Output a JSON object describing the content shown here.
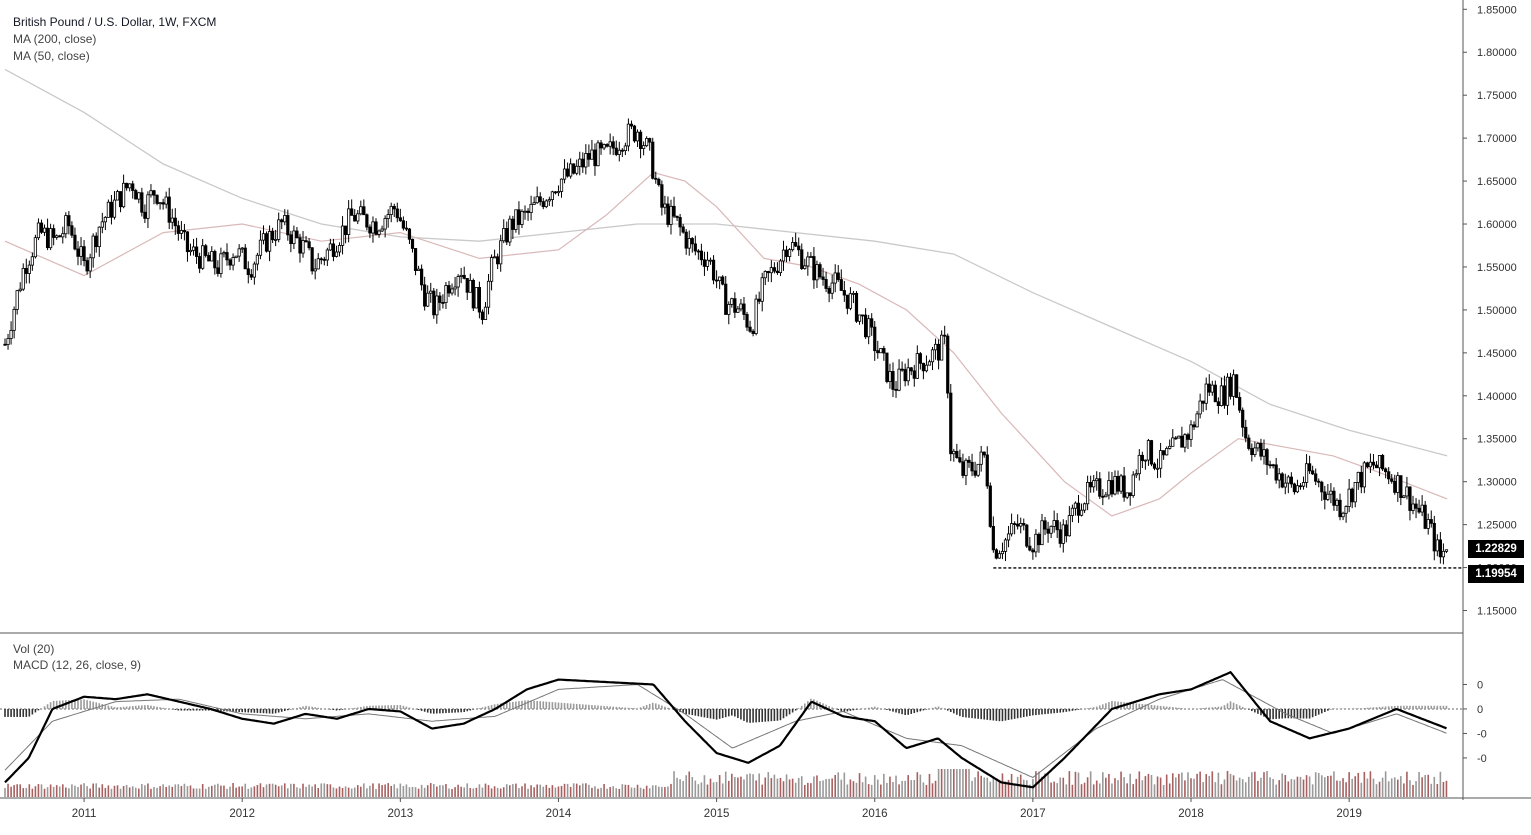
{
  "legend": {
    "symbol": "British Pound / U.S. Dollar, 1W, FXCM",
    "ma200": "MA (200, close)",
    "ma50": "MA (50, close)",
    "vol": "Vol (20)",
    "macd": "MACD (12, 26, close, 9)"
  },
  "price_badges": {
    "last": "1.22829",
    "low": "1.19954"
  },
  "colors": {
    "candle": "#000000",
    "ma200": "#c9c9c9",
    "ma50": "#d9b8b8",
    "volume_up": "#8b2a2a",
    "volume_down": "#777777",
    "macd_line": "#000000",
    "signal_line": "#777777",
    "histogram": "#9a9a9a"
  },
  "chart_data": [
    {
      "type": "line",
      "title": "British Pound / U.S. Dollar, 1W, FXCM",
      "x_axis": {
        "ticks": [
          "2011",
          "2012",
          "2013",
          "2014",
          "2015",
          "2016",
          "2017",
          "2018",
          "2019"
        ],
        "range": [
          2010.5,
          2019.72
        ]
      },
      "y_axis": {
        "ticks": [
          "1.85000",
          "1.80000",
          "1.75000",
          "1.70000",
          "1.65000",
          "1.60000",
          "1.55000",
          "1.50000",
          "1.45000",
          "1.40000",
          "1.35000",
          "1.30000",
          "1.25000",
          "1.20000",
          "1.15000"
        ],
        "range": [
          1.125,
          1.855
        ],
        "side": "right"
      },
      "series": [
        {
          "name": "British Pound / U.S. Dollar",
          "style": "candlestick",
          "points": [
            [
              2010.5,
              1.46
            ],
            [
              2010.62,
              1.55
            ],
            [
              2010.72,
              1.59
            ],
            [
              2010.82,
              1.58
            ],
            [
              2010.9,
              1.6
            ],
            [
              2011.0,
              1.55
            ],
            [
              2011.1,
              1.6
            ],
            [
              2011.18,
              1.62
            ],
            [
              2011.3,
              1.65
            ],
            [
              2011.38,
              1.62
            ],
            [
              2011.45,
              1.64
            ],
            [
              2011.55,
              1.61
            ],
            [
              2011.65,
              1.57
            ],
            [
              2011.75,
              1.56
            ],
            [
              2011.85,
              1.55
            ],
            [
              2011.95,
              1.57
            ],
            [
              2012.05,
              1.55
            ],
            [
              2012.15,
              1.58
            ],
            [
              2012.25,
              1.6
            ],
            [
              2012.4,
              1.57
            ],
            [
              2012.45,
              1.55
            ],
            [
              2012.55,
              1.57
            ],
            [
              2012.7,
              1.61
            ],
            [
              2012.85,
              1.6
            ],
            [
              2012.97,
              1.62
            ],
            [
              2013.05,
              1.58
            ],
            [
              2013.15,
              1.52
            ],
            [
              2013.22,
              1.5
            ],
            [
              2013.3,
              1.53
            ],
            [
              2013.38,
              1.55
            ],
            [
              2013.45,
              1.52
            ],
            [
              2013.52,
              1.5
            ],
            [
              2013.58,
              1.55
            ],
            [
              2013.7,
              1.6
            ],
            [
              2013.8,
              1.61
            ],
            [
              2013.9,
              1.63
            ],
            [
              2014.0,
              1.65
            ],
            [
              2014.1,
              1.66
            ],
            [
              2014.2,
              1.68
            ],
            [
              2014.3,
              1.68
            ],
            [
              2014.4,
              1.7
            ],
            [
              2014.5,
              1.71
            ],
            [
              2014.58,
              1.68
            ],
            [
              2014.65,
              1.62
            ],
            [
              2014.75,
              1.6
            ],
            [
              2014.85,
              1.57
            ],
            [
              2014.95,
              1.56
            ],
            [
              2015.05,
              1.51
            ],
            [
              2015.15,
              1.5
            ],
            [
              2015.22,
              1.48
            ],
            [
              2015.3,
              1.53
            ],
            [
              2015.4,
              1.56
            ],
            [
              2015.45,
              1.58
            ],
            [
              2015.55,
              1.56
            ],
            [
              2015.65,
              1.54
            ],
            [
              2015.75,
              1.53
            ],
            [
              2015.85,
              1.51
            ],
            [
              2015.95,
              1.48
            ],
            [
              2016.05,
              1.44
            ],
            [
              2016.12,
              1.41
            ],
            [
              2016.2,
              1.43
            ],
            [
              2016.3,
              1.44
            ],
            [
              2016.38,
              1.45
            ],
            [
              2016.45,
              1.46
            ],
            [
              2016.48,
              1.34
            ],
            [
              2016.55,
              1.31
            ],
            [
              2016.65,
              1.32
            ],
            [
              2016.7,
              1.33
            ],
            [
              2016.75,
              1.22
            ],
            [
              2016.82,
              1.23
            ],
            [
              2016.9,
              1.25
            ],
            [
              2017.0,
              1.23
            ],
            [
              2017.1,
              1.25
            ],
            [
              2017.2,
              1.24
            ],
            [
              2017.3,
              1.28
            ],
            [
              2017.4,
              1.29
            ],
            [
              2017.5,
              1.3
            ],
            [
              2017.6,
              1.29
            ],
            [
              2017.7,
              1.34
            ],
            [
              2017.8,
              1.32
            ],
            [
              2017.9,
              1.34
            ],
            [
              2018.0,
              1.36
            ],
            [
              2018.1,
              1.41
            ],
            [
              2018.2,
              1.4
            ],
            [
              2018.27,
              1.42
            ],
            [
              2018.35,
              1.35
            ],
            [
              2018.45,
              1.33
            ],
            [
              2018.55,
              1.31
            ],
            [
              2018.65,
              1.29
            ],
            [
              2018.75,
              1.31
            ],
            [
              2018.85,
              1.29
            ],
            [
              2018.95,
              1.27
            ],
            [
              2019.05,
              1.3
            ],
            [
              2019.15,
              1.32
            ],
            [
              2019.25,
              1.31
            ],
            [
              2019.35,
              1.29
            ],
            [
              2019.42,
              1.27
            ],
            [
              2019.5,
              1.25
            ],
            [
              2019.58,
              1.21
            ],
            [
              2019.62,
              1.23
            ]
          ]
        },
        {
          "name": "MA (200, close)",
          "points": [
            [
              2010.5,
              1.78
            ],
            [
              2011.0,
              1.73
            ],
            [
              2011.5,
              1.67
            ],
            [
              2012.0,
              1.63
            ],
            [
              2012.5,
              1.6
            ],
            [
              2013.0,
              1.585
            ],
            [
              2013.5,
              1.58
            ],
            [
              2014.0,
              1.59
            ],
            [
              2014.5,
              1.6
            ],
            [
              2015.0,
              1.6
            ],
            [
              2015.5,
              1.59
            ],
            [
              2016.0,
              1.58
            ],
            [
              2016.5,
              1.565
            ],
            [
              2017.0,
              1.52
            ],
            [
              2017.5,
              1.48
            ],
            [
              2018.0,
              1.44
            ],
            [
              2018.5,
              1.39
            ],
            [
              2019.0,
              1.36
            ],
            [
              2019.62,
              1.33
            ]
          ]
        },
        {
          "name": "MA (50, close)",
          "points": [
            [
              2010.5,
              1.58
            ],
            [
              2011.0,
              1.54
            ],
            [
              2011.5,
              1.59
            ],
            [
              2012.0,
              1.6
            ],
            [
              2012.5,
              1.58
            ],
            [
              2013.0,
              1.59
            ],
            [
              2013.5,
              1.56
            ],
            [
              2014.0,
              1.57
            ],
            [
              2014.3,
              1.61
            ],
            [
              2014.6,
              1.66
            ],
            [
              2014.8,
              1.65
            ],
            [
              2015.0,
              1.62
            ],
            [
              2015.3,
              1.56
            ],
            [
              2015.6,
              1.55
            ],
            [
              2015.9,
              1.53
            ],
            [
              2016.2,
              1.5
            ],
            [
              2016.5,
              1.45
            ],
            [
              2016.8,
              1.38
            ],
            [
              2017.2,
              1.3
            ],
            [
              2017.5,
              1.26
            ],
            [
              2017.8,
              1.28
            ],
            [
              2018.0,
              1.31
            ],
            [
              2018.3,
              1.35
            ],
            [
              2018.6,
              1.34
            ],
            [
              2018.9,
              1.33
            ],
            [
              2019.2,
              1.31
            ],
            [
              2019.62,
              1.28
            ]
          ]
        }
      ],
      "annotations": [
        {
          "type": "horizontal-dotted-line",
          "y": 1.19954
        }
      ]
    },
    {
      "type": "line",
      "title": "Vol (20) / MACD (12, 26, close, 9)",
      "y_axis": {
        "ticks": [
          "0",
          "0",
          "-0",
          "-0"
        ],
        "side": "right"
      },
      "series": [
        {
          "name": "MACD",
          "points": [
            [
              2010.5,
              -0.3
            ],
            [
              2010.65,
              -0.2
            ],
            [
              2010.8,
              0.0
            ],
            [
              2011.0,
              0.05
            ],
            [
              2011.2,
              0.04
            ],
            [
              2011.4,
              0.06
            ],
            [
              2011.6,
              0.03
            ],
            [
              2011.8,
              0.0
            ],
            [
              2012.0,
              -0.04
            ],
            [
              2012.2,
              -0.06
            ],
            [
              2012.4,
              -0.02
            ],
            [
              2012.6,
              -0.04
            ],
            [
              2012.8,
              0.0
            ],
            [
              2013.0,
              -0.01
            ],
            [
              2013.2,
              -0.08
            ],
            [
              2013.4,
              -0.06
            ],
            [
              2013.6,
              0.0
            ],
            [
              2013.8,
              0.08
            ],
            [
              2014.0,
              0.12
            ],
            [
              2014.3,
              0.11
            ],
            [
              2014.6,
              0.1
            ],
            [
              2014.8,
              -0.05
            ],
            [
              2015.0,
              -0.18
            ],
            [
              2015.2,
              -0.22
            ],
            [
              2015.4,
              -0.15
            ],
            [
              2015.6,
              0.03
            ],
            [
              2015.8,
              -0.03
            ],
            [
              2016.0,
              -0.05
            ],
            [
              2016.2,
              -0.16
            ],
            [
              2016.4,
              -0.12
            ],
            [
              2016.55,
              -0.2
            ],
            [
              2016.8,
              -0.3
            ],
            [
              2017.0,
              -0.32
            ],
            [
              2017.2,
              -0.2
            ],
            [
              2017.5,
              0.0
            ],
            [
              2017.8,
              0.06
            ],
            [
              2018.0,
              0.08
            ],
            [
              2018.25,
              0.15
            ],
            [
              2018.5,
              -0.05
            ],
            [
              2018.75,
              -0.12
            ],
            [
              2019.0,
              -0.08
            ],
            [
              2019.3,
              0.0
            ],
            [
              2019.62,
              -0.08
            ]
          ]
        },
        {
          "name": "Signal",
          "points": [
            [
              2010.5,
              -0.25
            ],
            [
              2010.8,
              -0.05
            ],
            [
              2011.2,
              0.03
            ],
            [
              2011.6,
              0.04
            ],
            [
              2012.0,
              -0.02
            ],
            [
              2012.4,
              -0.04
            ],
            [
              2012.8,
              -0.02
            ],
            [
              2013.2,
              -0.05
            ],
            [
              2013.6,
              -0.03
            ],
            [
              2014.0,
              0.08
            ],
            [
              2014.5,
              0.1
            ],
            [
              2014.8,
              -0.02
            ],
            [
              2015.1,
              -0.16
            ],
            [
              2015.5,
              -0.05
            ],
            [
              2015.8,
              -0.01
            ],
            [
              2016.2,
              -0.12
            ],
            [
              2016.55,
              -0.15
            ],
            [
              2017.0,
              -0.28
            ],
            [
              2017.4,
              -0.08
            ],
            [
              2017.8,
              0.04
            ],
            [
              2018.2,
              0.12
            ],
            [
              2018.6,
              -0.02
            ],
            [
              2018.9,
              -0.1
            ],
            [
              2019.3,
              -0.02
            ],
            [
              2019.62,
              -0.1
            ]
          ]
        }
      ]
    }
  ]
}
